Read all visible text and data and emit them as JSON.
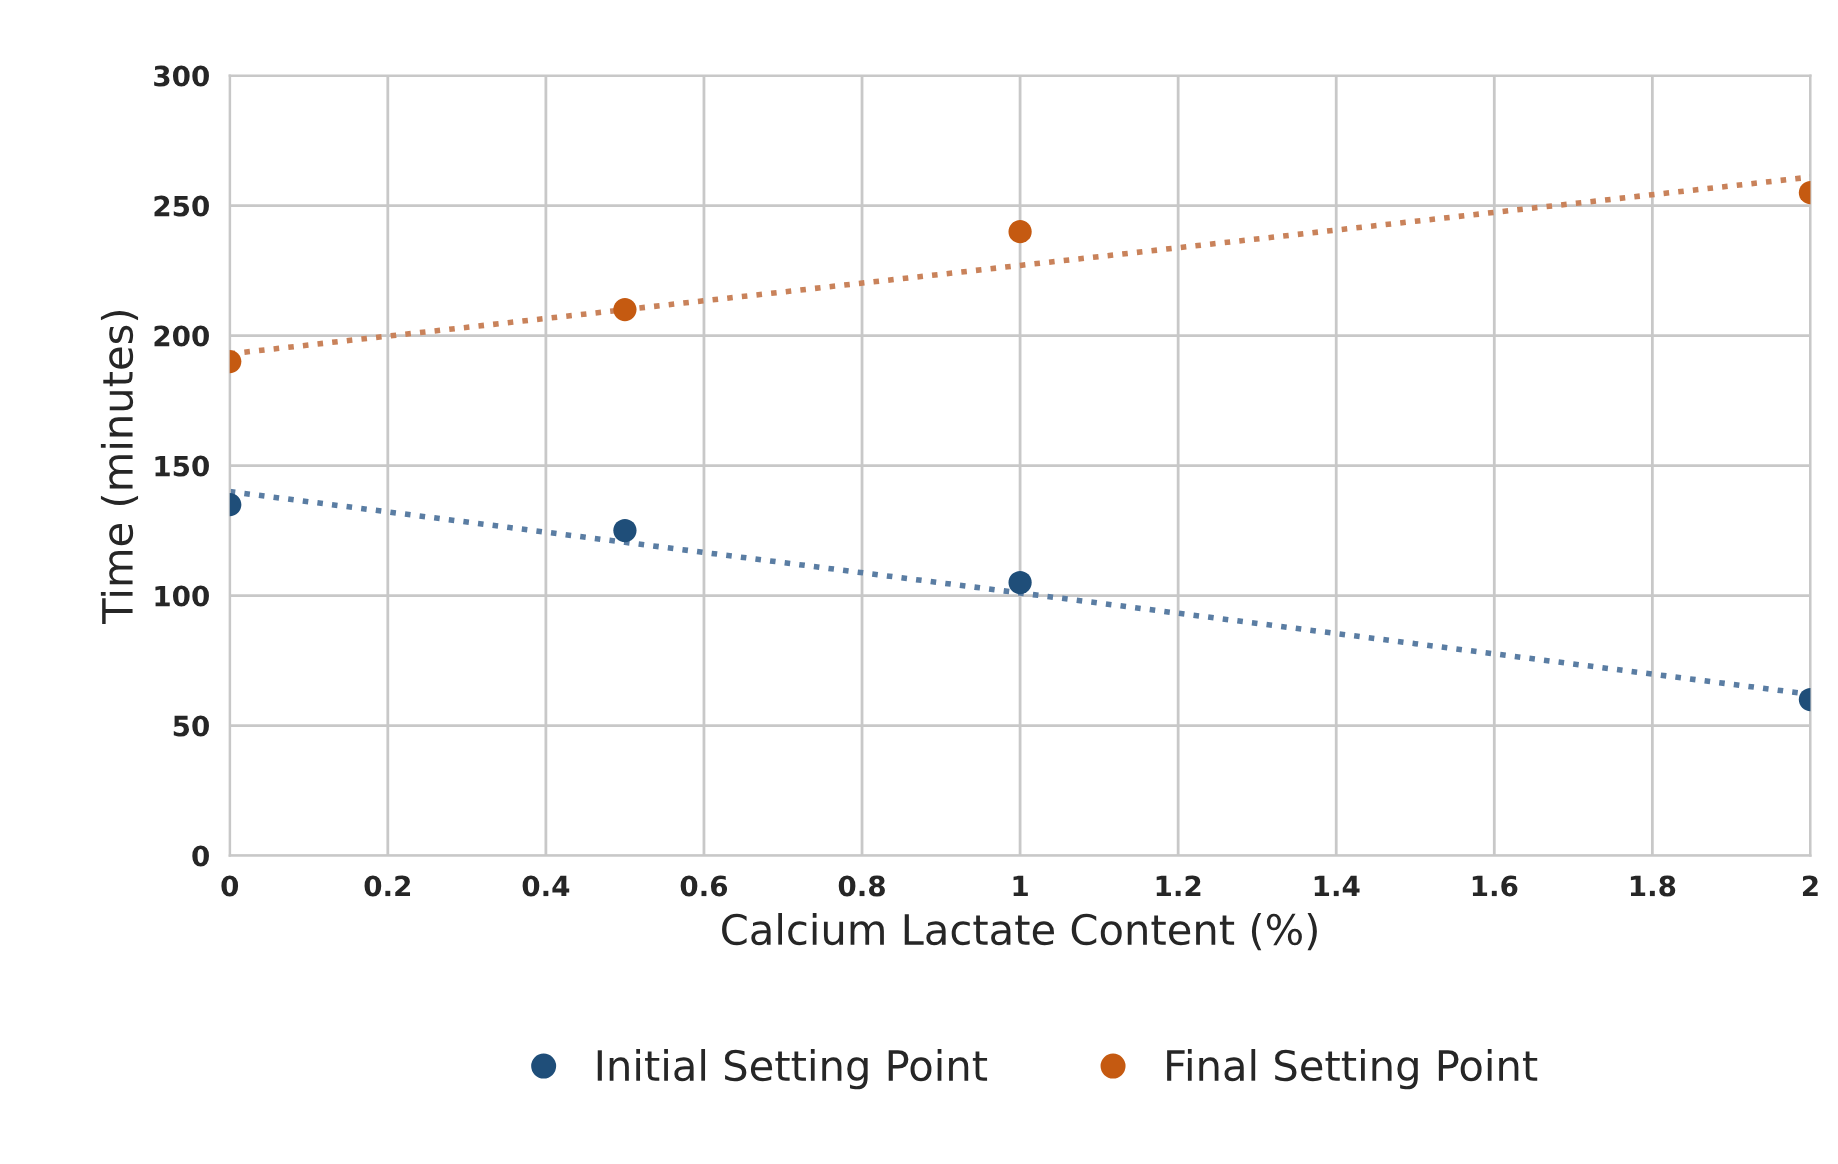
{
  "chart_data": {
    "type": "scatter",
    "xlabel": "Calcium Lactate Content (%)",
    "ylabel": "Time (minutes)",
    "x": [
      0,
      0.5,
      1,
      2
    ],
    "series": [
      {
        "name": "Initial Setting Point",
        "color": "#1f4e79",
        "values": [
          135,
          125,
          105,
          60
        ],
        "marker": "circle"
      },
      {
        "name": "Final Setting Point",
        "color": "#c55a11",
        "values": [
          190,
          210,
          240,
          255
        ],
        "marker": "circle"
      },
      {
        "type": "line",
        "color": "#5a7da3",
        "x": [
          0,
          0.5,
          1,
          1.5,
          2
        ],
        "values": [
          140,
          120.5,
          101,
          81.5,
          62
        ],
        "line_style": "dotted"
      },
      {
        "type": "line",
        "color": "#c9825a",
        "x": [
          0,
          0.5,
          1,
          1.5,
          2
        ],
        "values": [
          193,
          210,
          227,
          244,
          261
        ],
        "line_style": "dotted"
      }
    ],
    "xlim": [
      0,
      2
    ],
    "xticks": [
      0,
      0.2,
      0.4,
      0.6,
      0.8,
      1,
      1.2,
      1.4,
      1.6,
      1.8,
      2
    ],
    "ylim": [
      0,
      300
    ],
    "yticks": [
      0,
      50,
      100,
      150,
      200,
      250,
      300
    ],
    "grid": true,
    "legend": "bottom"
  }
}
